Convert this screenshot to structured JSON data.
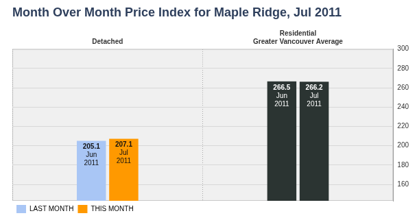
{
  "chart_data": {
    "type": "bar",
    "title": "Month Over Month Price Index for Maple Ridge, Jul 2011",
    "categories": [
      "Detached",
      "Residential"
    ],
    "annotations": [
      {
        "category": "Residential",
        "text": "Greater Vancouver Average"
      }
    ],
    "series": [
      {
        "name": "LAST MONTH",
        "period": "Jun 2011",
        "color": "#a9c6f5",
        "colors": [
          "#a9c6f5",
          "#2b3432"
        ],
        "values": [
          205.1,
          266.5
        ]
      },
      {
        "name": "THIS MONTH",
        "period": "Jul 2011",
        "color": "#ff9900",
        "colors": [
          "#ff9900",
          "#2b3432"
        ],
        "values": [
          207.1,
          266.2
        ]
      }
    ],
    "ylim": [
      143,
      300
    ],
    "yticks": [
      160,
      180,
      200,
      220,
      240,
      260,
      280,
      300
    ],
    "grid": true,
    "legend": "bottom-left",
    "data_labels": true
  }
}
